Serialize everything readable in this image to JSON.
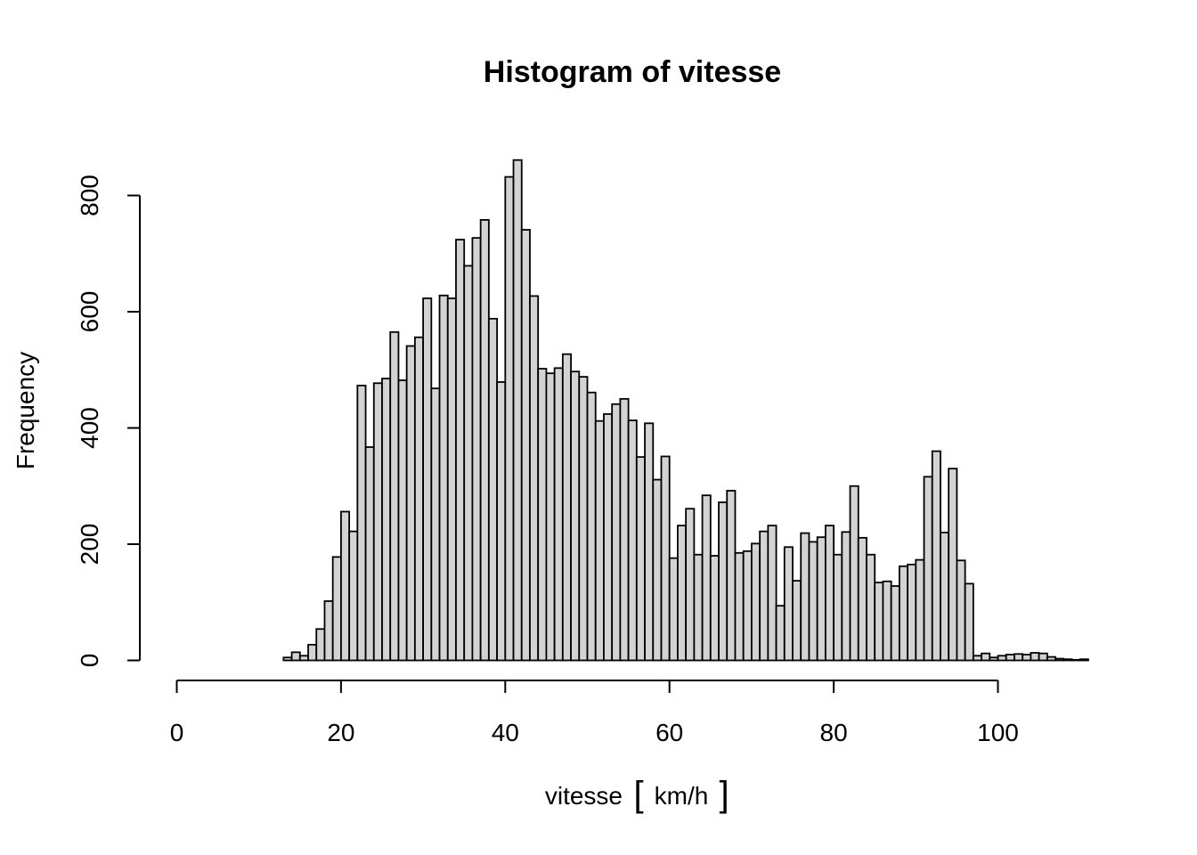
{
  "chart_data": {
    "type": "bar",
    "title": "Histogram of vitesse",
    "xlabel": {
      "name": "vitesse",
      "unit": "km/h"
    },
    "ylabel": "Frequency",
    "bin_start": 0,
    "bin_width": 1,
    "xlim": [
      0,
      111
    ],
    "ylim": [
      0,
      860
    ],
    "x_ticks": [
      0,
      20,
      40,
      60,
      80,
      100
    ],
    "y_ticks": [
      0,
      200,
      400,
      600,
      800
    ],
    "values": [
      0,
      0,
      0,
      0,
      0,
      0,
      0,
      0,
      0,
      0,
      0,
      0,
      0,
      5,
      14,
      8,
      27,
      54,
      102,
      178,
      256,
      222,
      473,
      367,
      477,
      485,
      565,
      482,
      541,
      556,
      623,
      468,
      628,
      623,
      724,
      679,
      727,
      758,
      588,
      479,
      832,
      861,
      741,
      627,
      502,
      494,
      503,
      527,
      497,
      488,
      461,
      412,
      424,
      441,
      450,
      413,
      350,
      408,
      311,
      351,
      176,
      232,
      261,
      182,
      284,
      180,
      272,
      292,
      185,
      188,
      201,
      222,
      232,
      94,
      195,
      137,
      219,
      204,
      212,
      232,
      182,
      221,
      300,
      211,
      182,
      134,
      136,
      128,
      162,
      165,
      173,
      316,
      360,
      220,
      330,
      172,
      132,
      8,
      12,
      5,
      8,
      10,
      11,
      10,
      13,
      12,
      6,
      3,
      2,
      1,
      2
    ]
  }
}
